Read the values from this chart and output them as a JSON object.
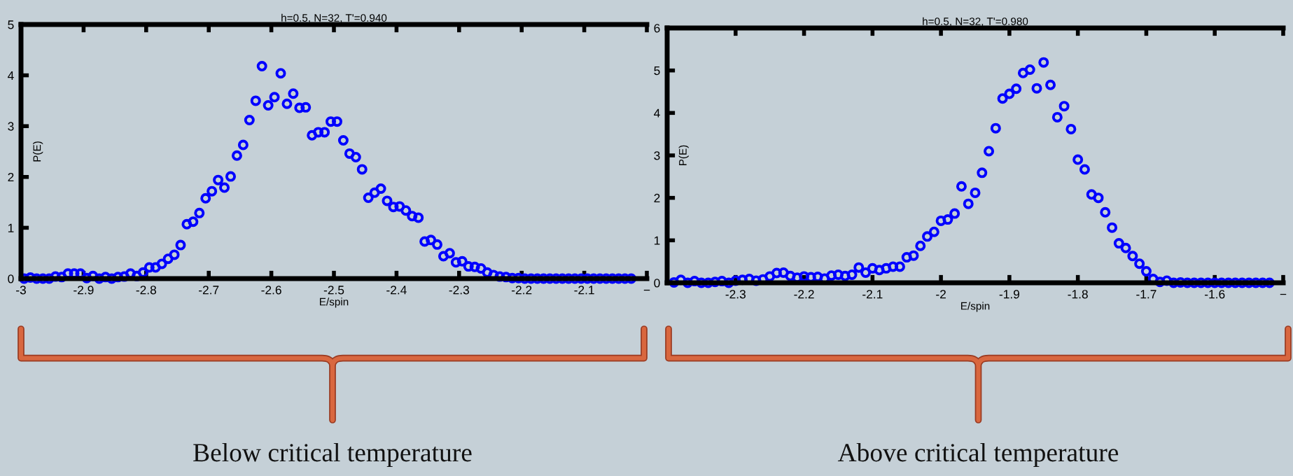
{
  "chart_data": [
    {
      "type": "scatter",
      "title": "h=0.5, N=32, T'=0.940",
      "xlabel": "E/spin",
      "ylabel": "P(E)",
      "marker": "circle",
      "grid": false,
      "legend": false,
      "xlim": [
        -3,
        -2
      ],
      "ylim": [
        0,
        5
      ],
      "xticks": [
        -3,
        -2.9,
        -2.8,
        -2.7,
        -2.6,
        -2.5,
        -2.4,
        -2.3,
        -2.2,
        -2.1,
        {
          "value": -2,
          "label": "−"
        }
      ],
      "yticks": [
        0,
        1,
        2,
        3,
        4,
        5
      ],
      "annotations": [
        "Below critical temperature"
      ],
      "series": [
        {
          "color": "#0000ff",
          "x": [
            -2.995,
            -2.985,
            -2.975,
            -2.965,
            -2.955,
            -2.945,
            -2.935,
            -2.925,
            -2.915,
            -2.905,
            -2.895,
            -2.885,
            -2.875,
            -2.865,
            -2.855,
            -2.845,
            -2.835,
            -2.825,
            -2.815,
            -2.805,
            -2.795,
            -2.785,
            -2.775,
            -2.765,
            -2.755,
            -2.745,
            -2.735,
            -2.725,
            -2.715,
            -2.705,
            -2.695,
            -2.685,
            -2.675,
            -2.665,
            -2.655,
            -2.645,
            -2.635,
            -2.625,
            -2.615,
            -2.605,
            -2.595,
            -2.585,
            -2.575,
            -2.565,
            -2.555,
            -2.545,
            -2.535,
            -2.525,
            -2.515,
            -2.505,
            -2.495,
            -2.485,
            -2.475,
            -2.465,
            -2.455,
            -2.445,
            -2.435,
            -2.425,
            -2.415,
            -2.405,
            -2.395,
            -2.385,
            -2.375,
            -2.365,
            -2.355,
            -2.345,
            -2.335,
            -2.325,
            -2.315,
            -2.305,
            -2.295,
            -2.285,
            -2.275,
            -2.265,
            -2.255,
            -2.245,
            -2.235,
            -2.225,
            -2.215,
            -2.205,
            -2.195,
            -2.185,
            -2.175,
            -2.165,
            -2.155,
            -2.145,
            -2.135,
            -2.125,
            -2.115,
            -2.105,
            -2.095,
            -2.085,
            -2.075,
            -2.065,
            -2.055,
            -2.045,
            -2.035,
            -2.025
          ],
          "values": [
            0.0,
            0.02,
            0.0,
            0.0,
            0.0,
            0.04,
            0.03,
            0.1,
            0.1,
            0.1,
            0.01,
            0.05,
            0.0,
            0.03,
            0.0,
            0.03,
            0.04,
            0.1,
            0.05,
            0.12,
            0.22,
            0.22,
            0.29,
            0.39,
            0.47,
            0.66,
            1.07,
            1.12,
            1.29,
            1.58,
            1.72,
            1.94,
            1.79,
            2.01,
            2.42,
            2.63,
            3.12,
            3.5,
            4.18,
            3.41,
            3.57,
            4.04,
            3.44,
            3.64,
            3.36,
            3.37,
            2.82,
            2.88,
            2.88,
            3.09,
            3.09,
            2.72,
            2.46,
            2.39,
            2.15,
            1.59,
            1.69,
            1.77,
            1.53,
            1.41,
            1.42,
            1.34,
            1.23,
            1.2,
            0.73,
            0.76,
            0.67,
            0.44,
            0.5,
            0.32,
            0.34,
            0.24,
            0.23,
            0.2,
            0.12,
            0.07,
            0.04,
            0.03,
            0.01,
            0.01,
            0.0,
            0.0,
            0.0,
            0.0,
            0.0,
            0.0,
            0.0,
            0.0,
            0.0,
            0.0,
            0.0,
            0.0,
            0.0,
            0.0,
            0.0,
            0.0,
            0.0,
            0.0
          ]
        }
      ]
    },
    {
      "type": "scatter",
      "title": "h=0.5, N=32, T'=0.980",
      "xlabel": "E/spin",
      "ylabel": "P(E)",
      "marker": "circle",
      "grid": false,
      "legend": false,
      "xlim": [
        -2.4,
        -1.5
      ],
      "ylim": [
        0,
        6
      ],
      "xticks": [
        -2.3,
        -2.2,
        -2.1,
        -2,
        -1.9,
        -1.8,
        -1.7,
        -1.6,
        {
          "value": -1.5,
          "label": "−"
        }
      ],
      "yticks": [
        0,
        1,
        2,
        3,
        4,
        5,
        6
      ],
      "annotations": [
        "Above critical temperature"
      ],
      "series": [
        {
          "color": "#0000ff",
          "x": [
            -2.39,
            -2.38,
            -2.37,
            -2.36,
            -2.35,
            -2.34,
            -2.33,
            -2.32,
            -2.31,
            -2.3,
            -2.29,
            -2.28,
            -2.27,
            -2.26,
            -2.25,
            -2.24,
            -2.23,
            -2.22,
            -2.21,
            -2.2,
            -2.19,
            -2.18,
            -2.17,
            -2.16,
            -2.15,
            -2.14,
            -2.13,
            -2.12,
            -2.11,
            -2.1,
            -2.09,
            -2.08,
            -2.07,
            -2.06,
            -2.05,
            -2.04,
            -2.03,
            -2.02,
            -2.01,
            -2.0,
            -1.99,
            -1.98,
            -1.97,
            -1.96,
            -1.95,
            -1.94,
            -1.93,
            -1.92,
            -1.91,
            -1.9,
            -1.89,
            -1.88,
            -1.87,
            -1.86,
            -1.85,
            -1.84,
            -1.83,
            -1.82,
            -1.81,
            -1.8,
            -1.79,
            -1.78,
            -1.77,
            -1.76,
            -1.75,
            -1.74,
            -1.73,
            -1.72,
            -1.71,
            -1.7,
            -1.69,
            -1.68,
            -1.67,
            -1.66,
            -1.65,
            -1.64,
            -1.63,
            -1.62,
            -1.61,
            -1.6,
            -1.59,
            -1.58,
            -1.57,
            -1.56,
            -1.55,
            -1.54,
            -1.53,
            -1.52
          ],
          "values": [
            0.01,
            0.07,
            0.0,
            0.04,
            0.0,
            0.0,
            0.02,
            0.04,
            0.0,
            0.05,
            0.07,
            0.09,
            0.05,
            0.08,
            0.15,
            0.23,
            0.24,
            0.16,
            0.12,
            0.15,
            0.13,
            0.14,
            0.1,
            0.17,
            0.19,
            0.16,
            0.19,
            0.36,
            0.24,
            0.34,
            0.3,
            0.34,
            0.38,
            0.38,
            0.6,
            0.64,
            0.87,
            1.09,
            1.2,
            1.46,
            1.49,
            1.63,
            2.27,
            1.86,
            2.12,
            2.59,
            3.1,
            3.64,
            4.34,
            4.45,
            4.57,
            4.94,
            5.02,
            4.58,
            5.19,
            4.66,
            3.9,
            4.16,
            3.62,
            2.9,
            2.67,
            2.08,
            2.0,
            1.66,
            1.3,
            0.93,
            0.82,
            0.63,
            0.45,
            0.27,
            0.09,
            0.02,
            0.05,
            0.0,
            0.01,
            0.0,
            0.0,
            0.0,
            0.0,
            0.0,
            0.0,
            0.0,
            0.0,
            0.0,
            0.0,
            0.0,
            0.0,
            0.0
          ]
        }
      ]
    }
  ]
}
